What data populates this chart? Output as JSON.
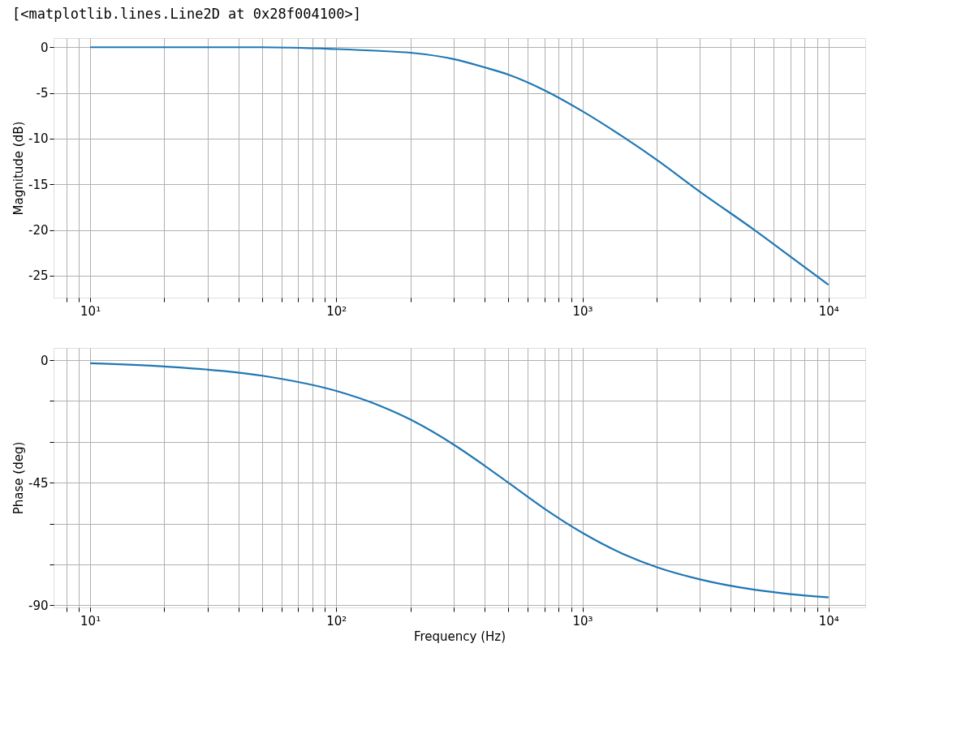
{
  "chart_data": [
    {
      "type": "line",
      "ylabel": "Magnitude (dB)",
      "annotations": [
        "[<matplotlib.lines.Line2D at 0x28f004100>]"
      ],
      "log": "x",
      "grid": true,
      "marker": "none",
      "line_style": "solid",
      "x": [
        10,
        20,
        50,
        100,
        150,
        200,
        300,
        400,
        500,
        700,
        1000,
        1500,
        2000,
        3000,
        5000,
        7000,
        10000
      ],
      "series": [
        {
          "color": "#1f77b4",
          "values": [
            0,
            0,
            0,
            -0.2,
            -0.4,
            -0.6,
            -1.3,
            -2.2,
            -3.0,
            -4.7,
            -7.0,
            -10.0,
            -12.3,
            -15.8,
            -20.0,
            -22.9,
            -26.0
          ]
        }
      ],
      "xlim": [
        7.1,
        14100
      ],
      "ylim": [
        -27.4,
        1.0
      ],
      "xticks": [
        {
          "value": 8,
          "label": null
        },
        {
          "value": 9,
          "label": null
        },
        {
          "value": 10,
          "label": "10¹"
        },
        {
          "value": 20,
          "label": null
        },
        {
          "value": 30,
          "label": null
        },
        {
          "value": 40,
          "label": null
        },
        {
          "value": 50,
          "label": null
        },
        {
          "value": 60,
          "label": null
        },
        {
          "value": 70,
          "label": null
        },
        {
          "value": 80,
          "label": null
        },
        {
          "value": 90,
          "label": null
        },
        {
          "value": 100,
          "label": "10²"
        },
        {
          "value": 200,
          "label": null
        },
        {
          "value": 300,
          "label": null
        },
        {
          "value": 400,
          "label": null
        },
        {
          "value": 500,
          "label": null
        },
        {
          "value": 600,
          "label": null
        },
        {
          "value": 700,
          "label": null
        },
        {
          "value": 800,
          "label": null
        },
        {
          "value": 900,
          "label": null
        },
        {
          "value": 1000,
          "label": "10³"
        },
        {
          "value": 2000,
          "label": null
        },
        {
          "value": 3000,
          "label": null
        },
        {
          "value": 4000,
          "label": null
        },
        {
          "value": 5000,
          "label": null
        },
        {
          "value": 6000,
          "label": null
        },
        {
          "value": 7000,
          "label": null
        },
        {
          "value": 8000,
          "label": null
        },
        {
          "value": 9000,
          "label": null
        },
        {
          "value": 10000,
          "label": "10⁴"
        }
      ],
      "yticks": [
        0,
        -5,
        -10,
        -15,
        -20,
        -25
      ]
    },
    {
      "type": "line",
      "ylabel": "Phase (deg)",
      "xlabel": "Frequency (Hz)",
      "log": "x",
      "grid": true,
      "marker": "none",
      "line_style": "solid",
      "x": [
        10,
        20,
        50,
        100,
        150,
        200,
        300,
        400,
        500,
        700,
        1000,
        1500,
        2000,
        3000,
        5000,
        7000,
        10000
      ],
      "series": [
        {
          "color": "#1f77b4",
          "values": [
            -1.1,
            -2.3,
            -5.7,
            -11.3,
            -16.7,
            -21.8,
            -31.0,
            -38.7,
            -45.0,
            -54.5,
            -63.4,
            -71.6,
            -76.0,
            -80.5,
            -84.3,
            -85.9,
            -87.1
          ]
        }
      ],
      "xlim": [
        7.1,
        14100
      ],
      "ylim": [
        -90.8,
        4.5
      ],
      "xticks": [
        {
          "value": 8,
          "label": null
        },
        {
          "value": 9,
          "label": null
        },
        {
          "value": 10,
          "label": "10¹"
        },
        {
          "value": 20,
          "label": null
        },
        {
          "value": 30,
          "label": null
        },
        {
          "value": 40,
          "label": null
        },
        {
          "value": 50,
          "label": null
        },
        {
          "value": 60,
          "label": null
        },
        {
          "value": 70,
          "label": null
        },
        {
          "value": 80,
          "label": null
        },
        {
          "value": 90,
          "label": null
        },
        {
          "value": 100,
          "label": "10²"
        },
        {
          "value": 200,
          "label": null
        },
        {
          "value": 300,
          "label": null
        },
        {
          "value": 400,
          "label": null
        },
        {
          "value": 500,
          "label": null
        },
        {
          "value": 600,
          "label": null
        },
        {
          "value": 700,
          "label": null
        },
        {
          "value": 800,
          "label": null
        },
        {
          "value": 900,
          "label": null
        },
        {
          "value": 1000,
          "label": "10³"
        },
        {
          "value": 2000,
          "label": null
        },
        {
          "value": 3000,
          "label": null
        },
        {
          "value": 4000,
          "label": null
        },
        {
          "value": 5000,
          "label": null
        },
        {
          "value": 6000,
          "label": null
        },
        {
          "value": 7000,
          "label": null
        },
        {
          "value": 8000,
          "label": null
        },
        {
          "value": 9000,
          "label": null
        },
        {
          "value": 10000,
          "label": "10⁴"
        }
      ],
      "yticks": [
        0,
        {
          "value": -15,
          "label": null
        },
        {
          "value": -30,
          "label": null
        },
        -45,
        {
          "value": -60,
          "label": null
        },
        {
          "value": -75,
          "label": null
        },
        -90
      ]
    }
  ]
}
